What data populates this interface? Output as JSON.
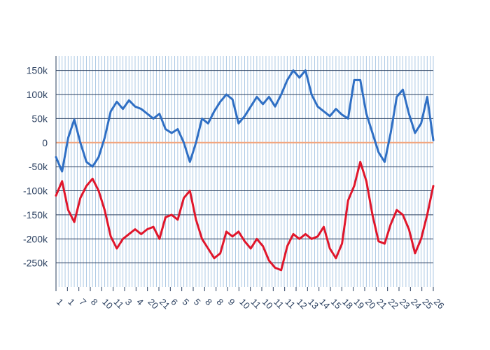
{
  "chart_data": {
    "type": "line",
    "title": "",
    "xlabel": "",
    "ylabel": "",
    "ylim": [
      -300000,
      180000
    ],
    "y_ticks": [
      150000,
      100000,
      50000,
      0,
      -50000,
      -100000,
      -150000,
      -200000,
      -250000
    ],
    "y_tick_labels": [
      "150k",
      "100k",
      "50k",
      "0",
      "-50k",
      "-100k",
      "-150k",
      "-200k",
      "-250k"
    ],
    "x_range": [
      1,
      125
    ],
    "zero_line_color": "#f2a57e",
    "grid": true,
    "grid_color_horizontal": "#2a3f5f",
    "grid_color_vertical": "#9fc0e0",
    "series": [
      {
        "color": "#2f6fc4",
        "x": [
          1,
          3,
          5,
          7,
          9,
          11,
          13,
          15,
          17,
          19,
          21,
          23,
          25,
          27,
          29,
          31,
          33,
          35,
          37,
          39,
          41,
          43,
          45,
          47,
          49,
          51,
          53,
          55,
          57,
          59,
          61,
          63,
          65,
          67,
          69,
          71,
          73,
          75,
          77,
          79,
          81,
          83,
          85,
          87,
          89,
          91,
          93,
          95,
          97,
          99,
          101,
          103,
          105,
          107,
          109,
          111,
          113,
          115,
          117,
          119,
          121,
          123,
          125
        ],
        "values": [
          -30000,
          -60000,
          10000,
          48000,
          0,
          -40000,
          -50000,
          -30000,
          10000,
          65000,
          85000,
          70000,
          88000,
          75000,
          70000,
          60000,
          50000,
          60000,
          28000,
          20000,
          28000,
          0,
          -40000,
          0,
          50000,
          40000,
          65000,
          85000,
          100000,
          90000,
          40000,
          55000,
          75000,
          95000,
          80000,
          95000,
          75000,
          100000,
          130000,
          150000,
          135000,
          150000,
          100000,
          75000,
          65000,
          55000,
          70000,
          58000,
          50000,
          130000,
          130000,
          60000,
          20000,
          -20000,
          -40000,
          20000,
          95000,
          110000,
          60000,
          20000,
          40000,
          95000,
          5000
        ]
      },
      {
        "color": "#e0162b",
        "x": [
          1,
          3,
          5,
          7,
          9,
          11,
          13,
          15,
          17,
          19,
          21,
          23,
          25,
          27,
          29,
          31,
          33,
          35,
          37,
          39,
          41,
          43,
          45,
          47,
          49,
          51,
          53,
          55,
          57,
          59,
          61,
          63,
          65,
          67,
          69,
          71,
          73,
          75,
          77,
          79,
          81,
          83,
          85,
          87,
          89,
          91,
          93,
          95,
          97,
          99,
          101,
          103,
          105,
          107,
          109,
          111,
          113,
          115,
          117,
          119,
          121,
          123,
          125
        ],
        "values": [
          -110000,
          -80000,
          -140000,
          -165000,
          -115000,
          -90000,
          -75000,
          -100000,
          -140000,
          -195000,
          -220000,
          -200000,
          -190000,
          -180000,
          -190000,
          -180000,
          -175000,
          -200000,
          -155000,
          -150000,
          -160000,
          -115000,
          -100000,
          -160000,
          -200000,
          -220000,
          -240000,
          -230000,
          -185000,
          -195000,
          -185000,
          -205000,
          -220000,
          -200000,
          -215000,
          -245000,
          -260000,
          -265000,
          -215000,
          -190000,
          -200000,
          -190000,
          -200000,
          -195000,
          -175000,
          -220000,
          -240000,
          -210000,
          -120000,
          -90000,
          -40000,
          -80000,
          -150000,
          -205000,
          -210000,
          -170000,
          -140000,
          -150000,
          -180000,
          -230000,
          -200000,
          -150000,
          -90000
        ]
      }
    ],
    "x_tick_label_groups": [
      "1",
      "1",
      "7",
      "8",
      "10",
      "11",
      "3",
      "4",
      "20",
      "21",
      "6",
      "5",
      "5",
      "8",
      "8",
      "9",
      "10",
      "11",
      "10",
      "11",
      "11",
      "12",
      "13",
      "14",
      "15",
      "18",
      "19",
      "20",
      "21",
      "22",
      "23",
      "24",
      "25",
      "26"
    ]
  }
}
